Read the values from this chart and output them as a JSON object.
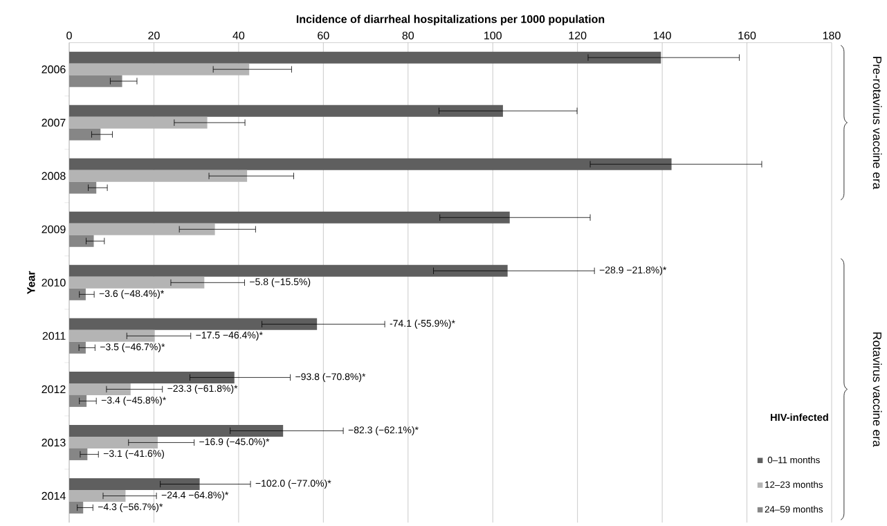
{
  "chart_data": {
    "type": "bar",
    "orientation": "horizontal",
    "xlabel": "Incidence of diarrheal hospitalizations per 1000 population",
    "ylabel": "Year",
    "categories": [
      "2006",
      "2007",
      "2008",
      "2009",
      "2010",
      "2011",
      "2012",
      "2013",
      "2014"
    ],
    "series": [
      {
        "name": "0–11 months",
        "color": "#5f5f5f",
        "values": [
          139.7,
          102.4,
          142.2,
          104.0,
          103.5,
          58.5,
          39.0,
          50.5,
          30.8
        ],
        "errors": [
          [
            122.5,
            158.2
          ],
          [
            87.3,
            119.9
          ],
          [
            123.0,
            163.5
          ],
          [
            87.5,
            123.0
          ],
          [
            86.0,
            124.0
          ],
          [
            45.5,
            74.5
          ],
          [
            28.5,
            52.2
          ],
          [
            38.0,
            64.7
          ],
          [
            21.5,
            42.8
          ]
        ]
      },
      {
        "name": "12–23 months",
        "color": "#b4b4b4",
        "values": [
          42.5,
          32.6,
          42.0,
          34.4,
          31.9,
          20.2,
          14.5,
          20.9,
          13.3
        ],
        "errors": [
          [
            34.0,
            52.5
          ],
          [
            24.8,
            41.5
          ],
          [
            33.0,
            53.0
          ],
          [
            26.0,
            44.0
          ],
          [
            24.0,
            41.4
          ],
          [
            13.6,
            28.7
          ],
          [
            8.8,
            22.0
          ],
          [
            14.0,
            29.5
          ],
          [
            8.0,
            20.6
          ]
        ]
      },
      {
        "name": "24–59 months",
        "color": "#868686",
        "values": [
          12.5,
          7.4,
          6.4,
          5.8,
          3.9,
          3.9,
          4.1,
          4.3,
          3.3
        ],
        "errors": [
          [
            9.7,
            16.0
          ],
          [
            5.3,
            10.2
          ],
          [
            4.5,
            9.0
          ],
          [
            4.0,
            8.3
          ],
          [
            2.4,
            5.9
          ],
          [
            2.3,
            6.1
          ],
          [
            2.4,
            6.4
          ],
          [
            2.6,
            6.9
          ],
          [
            1.9,
            5.6
          ]
        ]
      }
    ],
    "legend_title": "HIV-infected",
    "legend": "bottom right",
    "xlim": [
      0,
      180
    ],
    "xticks": [
      0,
      20,
      40,
      60,
      80,
      100,
      120,
      140,
      160,
      180
    ],
    "grid": "x",
    "annotations": [
      "Pre-rotavirus vaccine era",
      "Rotavirus vaccine era",
      "−28.9 −21.8%)*",
      "−5.8 (−15.5%)",
      "−3.6 (−48.4%)*",
      "-74.1 (-55.9%)*",
      "−17.5 −46.4%)*",
      "−3.5 (−46.7%)*",
      "−93.8 (−70.8%)*",
      "−23.3 (−61.8%)*",
      "−3.4 (−45.8%)*",
      "−82.3 (−62.1%)*",
      "−16.9 (−45.0%)*",
      "−3.1 (−41.6%)",
      "−102.0 (−77.0%)*",
      "−24.4 −64.8%)*",
      "−4.3 (−56.7%)*"
    ]
  }
}
